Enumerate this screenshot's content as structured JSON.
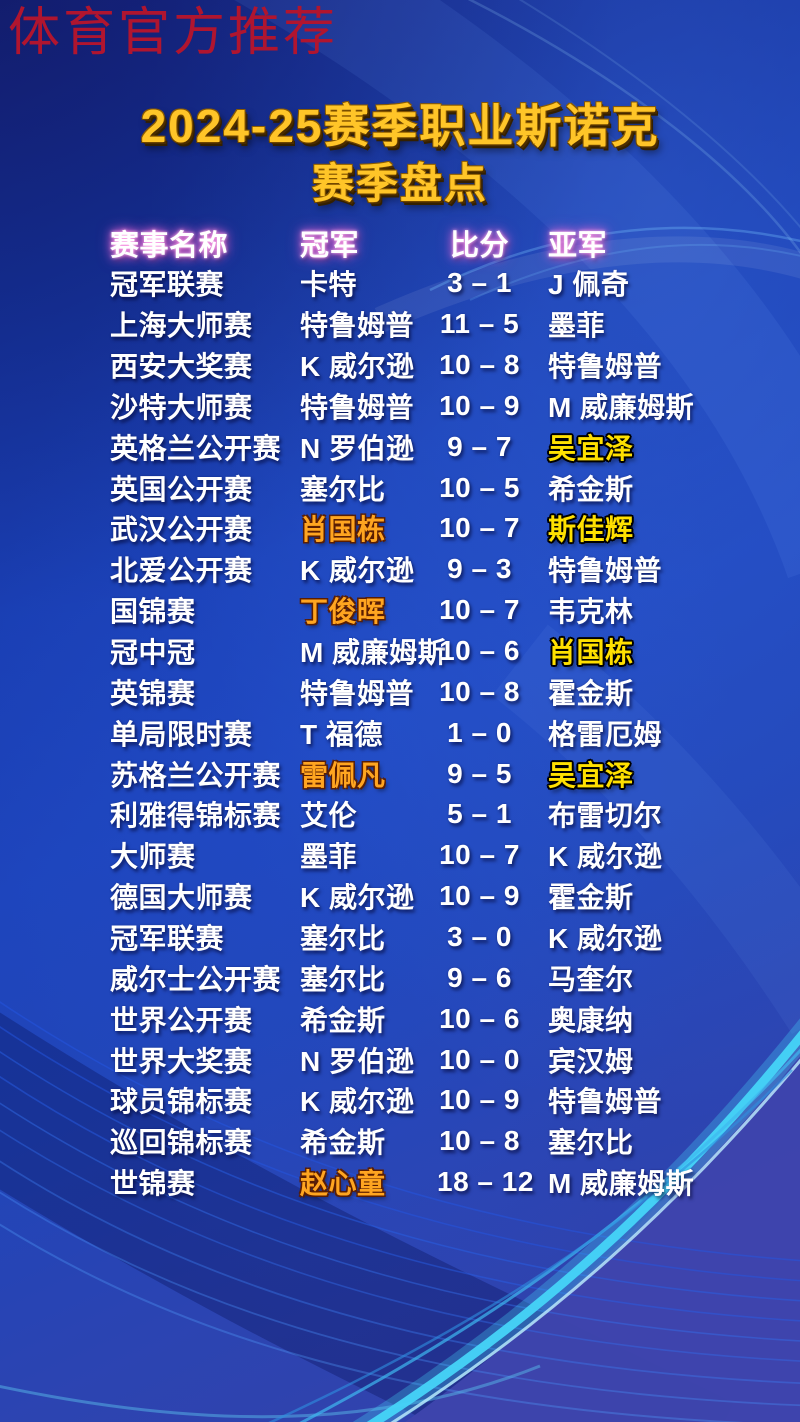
{
  "watermark": "体育官方推荐",
  "title": {
    "line1": "2024-25赛季职业斯诺克",
    "line2": "赛季盘点"
  },
  "table": {
    "headers": [
      "赛事名称",
      "冠军",
      "比分",
      "亚军"
    ],
    "rows": [
      {
        "event": "冠军联赛",
        "champion": "卡特",
        "score": "3 – 1",
        "runner_up": "J 佩奇",
        "champion_highlight": false,
        "runner_highlight": false
      },
      {
        "event": "上海大师赛",
        "champion": "特鲁姆普",
        "score": "11 – 5",
        "runner_up": "墨菲",
        "champion_highlight": false,
        "runner_highlight": false
      },
      {
        "event": "西安大奖赛",
        "champion": "K 威尔逊",
        "score": "10 – 8",
        "runner_up": "特鲁姆普",
        "champion_highlight": false,
        "runner_highlight": false
      },
      {
        "event": "沙特大师赛",
        "champion": "特鲁姆普",
        "score": "10 – 9",
        "runner_up": "M 威廉姆斯",
        "champion_highlight": false,
        "runner_highlight": false
      },
      {
        "event": "英格兰公开赛",
        "champion": "N 罗伯逊",
        "score": "9 – 7",
        "runner_up": "吴宜泽",
        "champion_highlight": false,
        "runner_highlight": true
      },
      {
        "event": "英国公开赛",
        "champion": "塞尔比",
        "score": "10 – 5",
        "runner_up": "希金斯",
        "champion_highlight": false,
        "runner_highlight": false
      },
      {
        "event": "武汉公开赛",
        "champion": "肖国栋",
        "score": "10 – 7",
        "runner_up": "斯佳辉",
        "champion_highlight": true,
        "runner_highlight": true
      },
      {
        "event": "北爱公开赛",
        "champion": "K 威尔逊",
        "score": "9 – 3",
        "runner_up": "特鲁姆普",
        "champion_highlight": false,
        "runner_highlight": false
      },
      {
        "event": "国锦赛",
        "champion": "丁俊晖",
        "score": "10 – 7",
        "runner_up": "韦克林",
        "champion_highlight": true,
        "runner_highlight": false
      },
      {
        "event": "冠中冠",
        "champion": "M 威廉姆斯",
        "score": "10 – 6",
        "runner_up": "肖国栋",
        "champion_highlight": false,
        "runner_highlight": true
      },
      {
        "event": "英锦赛",
        "champion": "特鲁姆普",
        "score": "10 – 8",
        "runner_up": "霍金斯",
        "champion_highlight": false,
        "runner_highlight": false
      },
      {
        "event": "单局限时赛",
        "champion": "T 福德",
        "score": "1 – 0",
        "runner_up": "格雷厄姆",
        "champion_highlight": false,
        "runner_highlight": false
      },
      {
        "event": "苏格兰公开赛",
        "champion": "雷佩凡",
        "score": "9 – 5",
        "runner_up": "吴宜泽",
        "champion_highlight": true,
        "runner_highlight": true
      },
      {
        "event": "利雅得锦标赛",
        "champion": "艾伦",
        "score": "5 – 1",
        "runner_up": "布雷切尔",
        "champion_highlight": false,
        "runner_highlight": false
      },
      {
        "event": "大师赛",
        "champion": "墨菲",
        "score": "10 – 7",
        "runner_up": "K 威尔逊",
        "champion_highlight": false,
        "runner_highlight": false
      },
      {
        "event": "德国大师赛",
        "champion": "K 威尔逊",
        "score": "10 – 9",
        "runner_up": "霍金斯",
        "champion_highlight": false,
        "runner_highlight": false
      },
      {
        "event": "冠军联赛",
        "champion": "塞尔比",
        "score": "3 – 0",
        "runner_up": "K 威尔逊",
        "champion_highlight": false,
        "runner_highlight": false
      },
      {
        "event": "威尔士公开赛",
        "champion": "塞尔比",
        "score": "9 – 6",
        "runner_up": "马奎尔",
        "champion_highlight": false,
        "runner_highlight": false
      },
      {
        "event": "世界公开赛",
        "champion": "希金斯",
        "score": "10 – 6",
        "runner_up": "奥康纳",
        "champion_highlight": false,
        "runner_highlight": false
      },
      {
        "event": "世界大奖赛",
        "champion": "N 罗伯逊",
        "score": "10 – 0",
        "runner_up": "宾汉姆",
        "champion_highlight": false,
        "runner_highlight": false
      },
      {
        "event": "球员锦标赛",
        "champion": "K 威尔逊",
        "score": "10 – 9",
        "runner_up": "特鲁姆普",
        "champion_highlight": false,
        "runner_highlight": false
      },
      {
        "event": "巡回锦标赛",
        "champion": "希金斯",
        "score": "10 – 8",
        "runner_up": "塞尔比",
        "champion_highlight": false,
        "runner_highlight": false
      },
      {
        "event": "世锦赛",
        "champion": "赵心童",
        "score": "18 – 12",
        "runner_up": "M 威廉姆斯",
        "champion_highlight": true,
        "runner_highlight": false
      }
    ]
  },
  "colors": {
    "title_gold": "#ffc528",
    "champion_highlight_orange": "#ffa520",
    "runner_highlight_yellow": "#ffe000",
    "header_glow_pink": "#ff6fd8",
    "watermark_red": "#b0152f",
    "wave_cyan": "#46d4f8",
    "background_blue": "#1d3bad"
  }
}
